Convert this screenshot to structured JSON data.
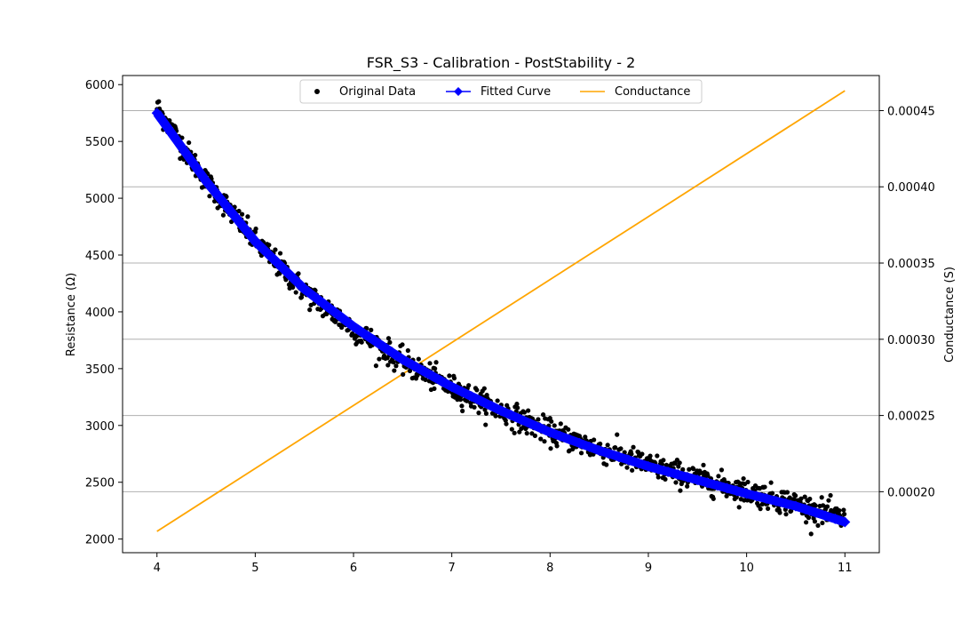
{
  "chart_data": {
    "type": "scatter",
    "title": "FSR_S3 - Calibration - PostStability - 2",
    "xlabel": "",
    "ylabel": "Resistance (Ω)",
    "y2label": "Conductance (S)",
    "xlim": [
      3.65,
      11.35
    ],
    "ylim": [
      1880,
      6080
    ],
    "y2lim": [
      0.00016,
      0.000473
    ],
    "x_ticks": [
      "4",
      "5",
      "6",
      "7",
      "8",
      "9",
      "10",
      "11"
    ],
    "y_ticks": [
      "2000",
      "2500",
      "3000",
      "3500",
      "4000",
      "4500",
      "5000",
      "5500",
      "6000"
    ],
    "y2_ticks": [
      "0.00020",
      "0.00025",
      "0.00030",
      "0.00035",
      "0.00040",
      "0.00045"
    ],
    "grid": "horizontal lines at right-axis ticks",
    "legend_position": "top-center",
    "legend": [
      "Original Data",
      "Fitted Curve",
      "Conductance"
    ],
    "colors": {
      "original": "#000000",
      "fitted": "#0000ff",
      "conductance": "#ffa500",
      "grid": "#b0b0b0"
    },
    "series": [
      {
        "name": "Original Data",
        "kind": "scatter",
        "x_range": [
          4.0,
          11.0
        ],
        "approx_points": [
          [
            4.0,
            5800
          ],
          [
            4.5,
            5150
          ],
          [
            5.0,
            4620
          ],
          [
            5.5,
            4180
          ],
          [
            6.0,
            3850
          ],
          [
            6.5,
            3560
          ],
          [
            7.0,
            3330
          ],
          [
            7.5,
            3130
          ],
          [
            8.0,
            2940
          ],
          [
            8.5,
            2790
          ],
          [
            9.0,
            2650
          ],
          [
            9.5,
            2530
          ],
          [
            10.0,
            2420
          ],
          [
            10.5,
            2310
          ],
          [
            11.0,
            2170
          ]
        ]
      },
      {
        "name": "Fitted Curve",
        "kind": "line",
        "x": [
          4.0,
          4.5,
          5.0,
          5.5,
          6.0,
          6.5,
          7.0,
          7.5,
          8.0,
          8.5,
          9.0,
          9.5,
          10.0,
          10.5,
          11.0
        ],
        "y": [
          5750,
          5150,
          4620,
          4200,
          3870,
          3580,
          3340,
          3130,
          2940,
          2780,
          2640,
          2520,
          2400,
          2290,
          2150
        ]
      },
      {
        "name": "Conductance",
        "kind": "line",
        "axis": "right",
        "x": [
          4.0,
          11.0
        ],
        "y": [
          0.000174,
          0.000463
        ]
      }
    ]
  }
}
